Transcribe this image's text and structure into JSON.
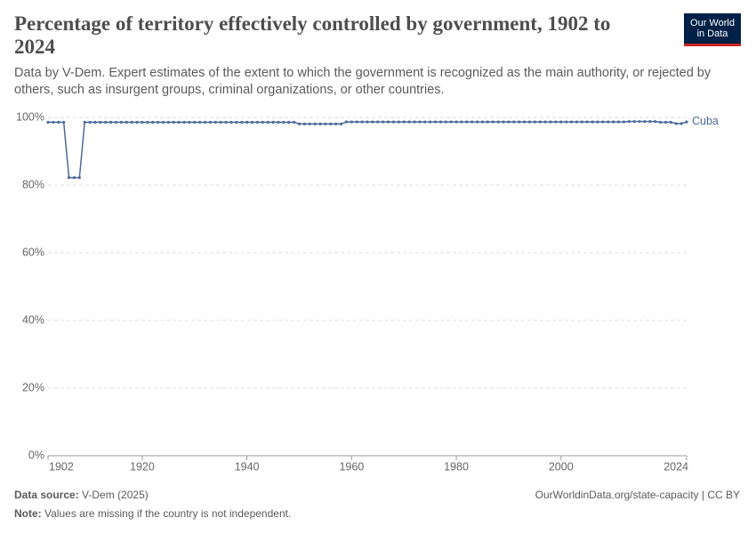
{
  "chart_data": {
    "type": "line",
    "title": "Percentage of territory effectively controlled by government, 1902 to 2024",
    "subtitle": "Data by V-Dem. Expert estimates of the extent to which the government is recognized as the main authority, or rejected by others, such as insurgent groups, criminal organizations, or other countries.",
    "logo": [
      "Our World",
      "in Data"
    ],
    "source_label": "Data source:",
    "source": "V-Dem (2025)",
    "url": "OurWorldinData.org/state-capacity | CC BY",
    "note_label": "Note:",
    "note": "Values are missing if the country is not independent.",
    "x": [
      1902,
      1903,
      1904,
      1905,
      1906,
      1907,
      1908,
      1909,
      1910,
      1911,
      1912,
      1913,
      1914,
      1915,
      1916,
      1917,
      1918,
      1919,
      1920,
      1921,
      1922,
      1923,
      1924,
      1925,
      1926,
      1927,
      1928,
      1929,
      1930,
      1931,
      1932,
      1933,
      1934,
      1935,
      1936,
      1937,
      1938,
      1939,
      1940,
      1941,
      1942,
      1943,
      1944,
      1945,
      1946,
      1947,
      1948,
      1949,
      1950,
      1951,
      1952,
      1953,
      1954,
      1955,
      1956,
      1957,
      1958,
      1959,
      1960,
      1961,
      1962,
      1963,
      1964,
      1965,
      1966,
      1967,
      1968,
      1969,
      1970,
      1971,
      1972,
      1973,
      1974,
      1975,
      1976,
      1977,
      1978,
      1979,
      1980,
      1981,
      1982,
      1983,
      1984,
      1985,
      1986,
      1987,
      1988,
      1989,
      1990,
      1991,
      1992,
      1993,
      1994,
      1995,
      1996,
      1997,
      1998,
      1999,
      2000,
      2001,
      2002,
      2003,
      2004,
      2005,
      2006,
      2007,
      2008,
      2009,
      2010,
      2011,
      2012,
      2013,
      2014,
      2015,
      2016,
      2017,
      2018,
      2019,
      2020,
      2021,
      2022,
      2023,
      2024
    ],
    "series": [
      {
        "name": "Cuba",
        "color": "#4c6a9c",
        "values": [
          98.6,
          98.6,
          98.6,
          98.6,
          82.2,
          82.2,
          82.2,
          98.6,
          98.6,
          98.6,
          98.6,
          98.6,
          98.6,
          98.6,
          98.6,
          98.6,
          98.6,
          98.6,
          98.6,
          98.6,
          98.6,
          98.6,
          98.6,
          98.6,
          98.6,
          98.6,
          98.6,
          98.6,
          98.6,
          98.6,
          98.6,
          98.6,
          98.6,
          98.6,
          98.6,
          98.6,
          98.6,
          98.6,
          98.6,
          98.6,
          98.6,
          98.6,
          98.6,
          98.6,
          98.6,
          98.6,
          98.6,
          98.6,
          98.1,
          98.1,
          98.1,
          98.1,
          98.1,
          98.1,
          98.1,
          98.1,
          98.1,
          98.7,
          98.7,
          98.7,
          98.7,
          98.7,
          98.7,
          98.7,
          98.7,
          98.7,
          98.7,
          98.7,
          98.7,
          98.7,
          98.7,
          98.7,
          98.7,
          98.7,
          98.7,
          98.7,
          98.7,
          98.7,
          98.7,
          98.7,
          98.7,
          98.7,
          98.7,
          98.7,
          98.7,
          98.7,
          98.7,
          98.7,
          98.7,
          98.7,
          98.7,
          98.7,
          98.7,
          98.7,
          98.7,
          98.7,
          98.7,
          98.7,
          98.7,
          98.7,
          98.7,
          98.7,
          98.7,
          98.7,
          98.7,
          98.7,
          98.7,
          98.7,
          98.7,
          98.7,
          98.7,
          98.8,
          98.8,
          98.8,
          98.8,
          98.8,
          98.8,
          98.6,
          98.6,
          98.6,
          98.2,
          98.2,
          98.7
        ]
      }
    ],
    "xlim": [
      1902,
      2024
    ],
    "xticks": [
      1902,
      1920,
      1940,
      1960,
      1980,
      2000,
      2024
    ],
    "ylim": [
      0,
      100
    ],
    "yticks": [
      {
        "value": 0,
        "label": "0%"
      },
      {
        "value": 20,
        "label": "20%"
      },
      {
        "value": 40,
        "label": "40%"
      },
      {
        "value": 60,
        "label": "60%"
      },
      {
        "value": 80,
        "label": "80%"
      },
      {
        "value": 100,
        "label": "100%"
      }
    ],
    "grid": true
  }
}
